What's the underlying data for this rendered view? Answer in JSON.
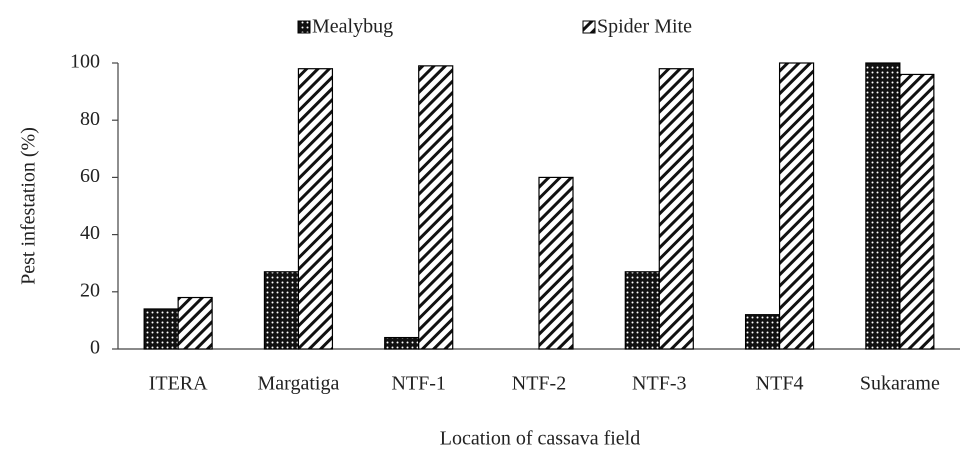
{
  "chart_data": {
    "type": "bar",
    "x_label": "Location of cassava field",
    "y_label": "Pest infestation (%)",
    "categories": [
      "ITERA",
      "Margatiga",
      "NTF-1",
      "NTF-2",
      "NTF-3",
      "NTF4",
      "Sukarame"
    ],
    "series": [
      {
        "name": "Mealybug",
        "color": "#000000",
        "pattern": "dots",
        "values": [
          14,
          27,
          4,
          0,
          27,
          12,
          100
        ]
      },
      {
        "name": "Spider Mite",
        "color": "#000000",
        "pattern": "hatch",
        "values": [
          18,
          98,
          99,
          60,
          98,
          100,
          96
        ]
      }
    ],
    "ylim": [
      0,
      100
    ],
    "yticks": [
      0,
      20,
      40,
      60,
      80,
      100
    ],
    "legend": "top"
  }
}
